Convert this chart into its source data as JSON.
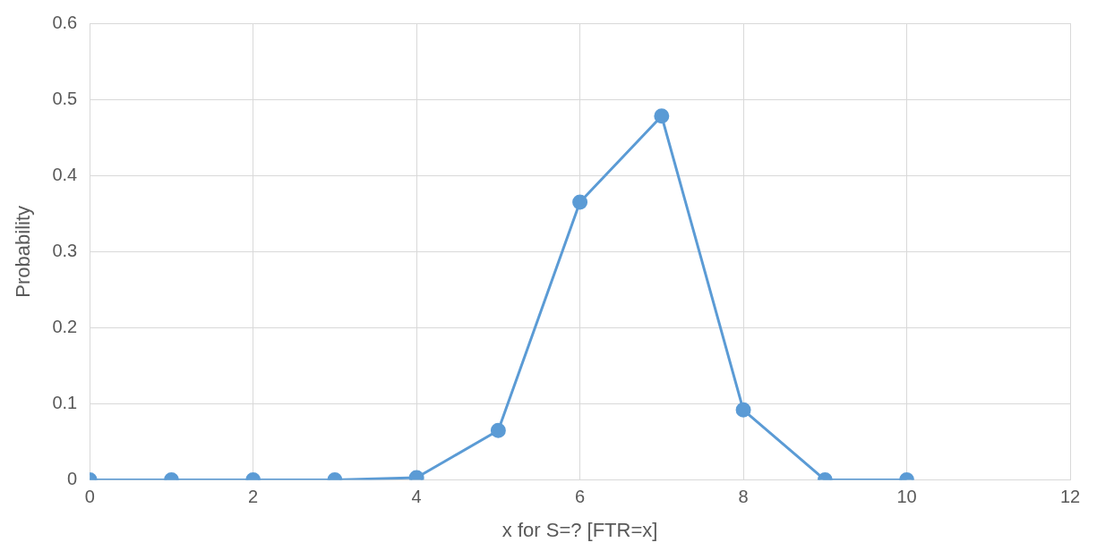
{
  "chart_data": {
    "type": "line",
    "xlabel": "x for S=? [FTR=x]",
    "ylabel": "Probability",
    "x": [
      0,
      1,
      2,
      3,
      4,
      5,
      6,
      7,
      8,
      9,
      10
    ],
    "series": [
      {
        "color": "#5b9bd5",
        "values": [
          0,
          0,
          0,
          0,
          0.003,
          0.065,
          0.365,
          0.478,
          0.092,
          0,
          0
        ]
      }
    ],
    "xlim": [
      0,
      12
    ],
    "xticks": [
      0,
      2,
      4,
      6,
      8,
      10,
      12
    ],
    "ylim": [
      0,
      0.6
    ],
    "yticks": [
      0,
      0.1,
      0.2,
      0.3,
      0.4,
      0.5,
      0.6
    ],
    "grid": true,
    "legend": false,
    "marker": "circle",
    "line_style": "solid"
  }
}
